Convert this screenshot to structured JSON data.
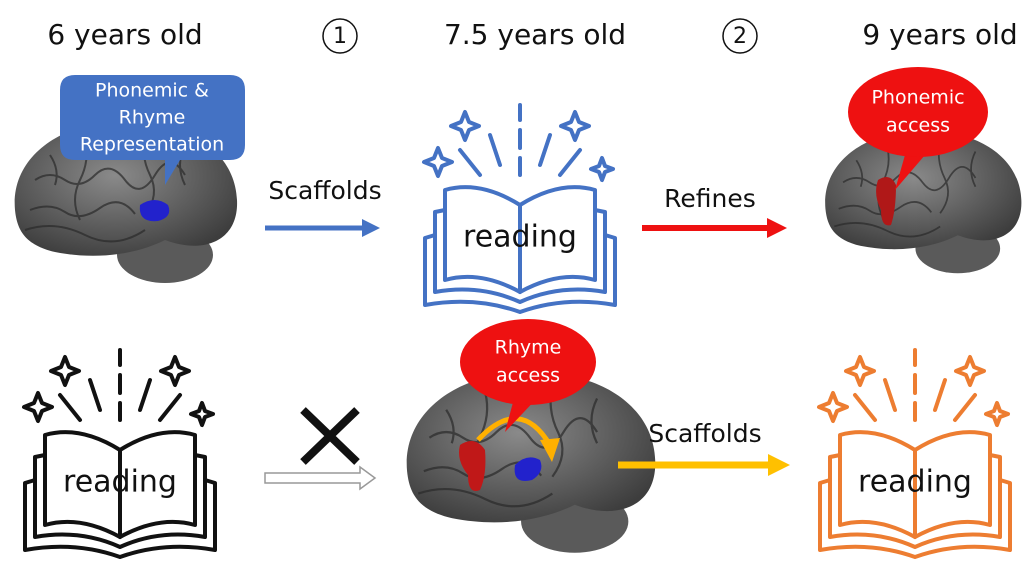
{
  "headers": {
    "age_1": "6 years old",
    "step_1": "1",
    "age_2": "7.5 years old",
    "step_2": "2",
    "age_3": "9 years old"
  },
  "bubbles": {
    "representation": {
      "lines": [
        "Phonemic &",
        "Rhyme",
        "Representation"
      ]
    },
    "phonemic": {
      "lines": [
        "Phonemic",
        "access"
      ]
    },
    "rhyme": {
      "lines": [
        "Rhyme",
        "access"
      ]
    }
  },
  "arrows": {
    "top_1": "Scaffolds",
    "top_2": "Refines",
    "bottom_2": "Scaffolds"
  },
  "books": {
    "top": "reading",
    "bottom_left": "reading",
    "bottom_right": "reading"
  }
}
